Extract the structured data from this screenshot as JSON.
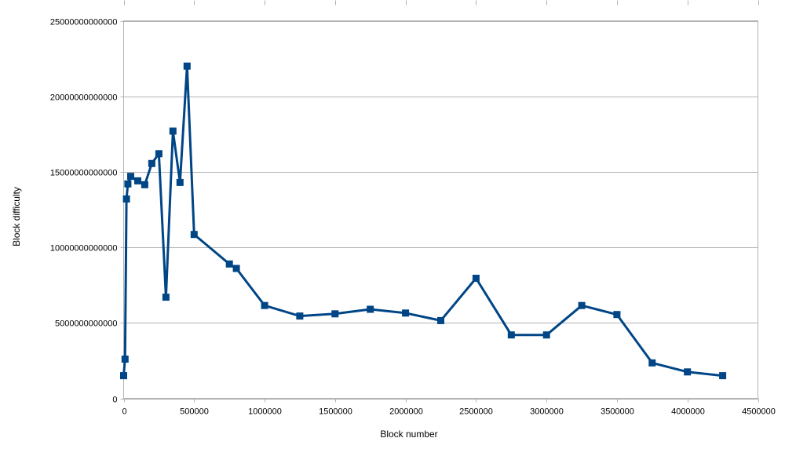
{
  "chart_data": {
    "type": "line",
    "xlabel": "Block number",
    "ylabel": "Block difficulty",
    "xlim": [
      0,
      4500000
    ],
    "ylim": [
      0,
      25000000000000
    ],
    "x_ticks": [
      0,
      500000,
      1000000,
      1500000,
      2000000,
      2500000,
      3000000,
      3500000,
      4000000,
      4500000
    ],
    "y_ticks": [
      0,
      5000000000000,
      10000000000000,
      15000000000000,
      20000000000000,
      25000000000000
    ],
    "x_tick_labels": [
      "0",
      "500000",
      "1000000",
      "1500000",
      "2000000",
      "2500000",
      "3000000",
      "3500000",
      "4000000",
      "4500000"
    ],
    "y_tick_labels": [
      "0",
      "5000000000000",
      "10000000000000",
      "15000000000000",
      "20000000000000",
      "25000000000000"
    ],
    "grid": "horizontal",
    "marker": "square",
    "color": "#004586",
    "series": [
      {
        "x": [
          0,
          10000,
          20000,
          30000,
          50000,
          100000,
          150000,
          200000,
          250000,
          300000,
          350000,
          400000,
          450000,
          500000,
          750000,
          800000,
          1000000,
          1250000,
          1500000,
          1750000,
          2000000,
          2250000,
          2500000,
          2750000,
          3000000,
          3250000,
          3500000,
          3750000,
          4000000,
          4250000
        ],
        "y": [
          1500000000000,
          2600000000000,
          13200000000000,
          14200000000000,
          14700000000000,
          14400000000000,
          14150000000000,
          15550000000000,
          16200000000000,
          6700000000000,
          17700000000000,
          14300000000000,
          22000000000000,
          10850000000000,
          8900000000000,
          8600000000000,
          6150000000000,
          5450000000000,
          5600000000000,
          5900000000000,
          5650000000000,
          5150000000000,
          7950000000000,
          4200000000000,
          4200000000000,
          6150000000000,
          5550000000000,
          2350000000000,
          1750000000000,
          1500000000000
        ]
      }
    ]
  }
}
